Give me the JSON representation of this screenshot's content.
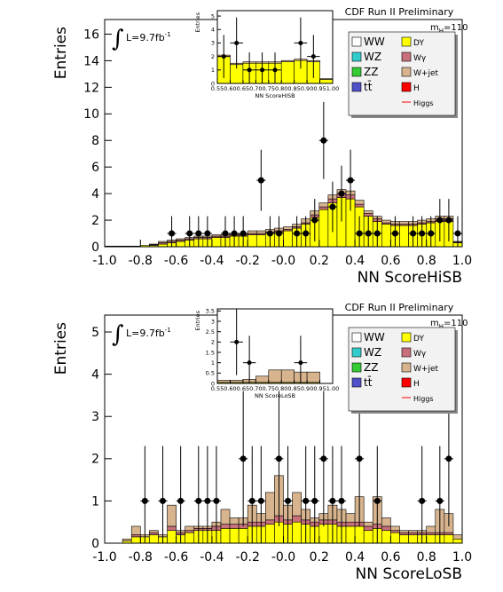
{
  "chart_data": [
    {
      "type": "stacked_histogram",
      "xlabel": "NN ScoreHiSB",
      "ylabel": "Entries",
      "experiment": "CDF Run II Preliminary",
      "lumi": [
        "∫",
        "L=9.7fb",
        "-1"
      ],
      "mass": [
        "m",
        "H",
        "=110"
      ],
      "xlim": [
        -1.0,
        1.0
      ],
      "ylim": [
        0,
        17.1
      ],
      "xticks": [
        {
          "value": -1.0,
          "label": "-1.0"
        },
        {
          "value": -0.8,
          "label": "-0.8"
        },
        {
          "value": -0.6,
          "label": "-0.6"
        },
        {
          "value": -0.4,
          "label": "-0.4"
        },
        {
          "value": -0.2,
          "label": "-0.2"
        },
        {
          "value": 0,
          "label": "-0.0"
        },
        {
          "value": 0.2,
          "label": "0.2"
        },
        {
          "value": 0.4,
          "label": "0.4"
        },
        {
          "value": 0.6,
          "label": "0.6"
        },
        {
          "value": 0.8,
          "label": "0.8"
        },
        {
          "value": 1.0,
          "label": "1.0"
        }
      ],
      "yticks": [
        0,
        2,
        4,
        6,
        8,
        10,
        12,
        14,
        16
      ],
      "bins": [
        -1.0,
        -0.95,
        -0.9,
        -0.85,
        -0.8,
        -0.75,
        -0.7,
        -0.65,
        -0.6,
        -0.55,
        -0.5,
        -0.45,
        -0.4,
        -0.35,
        -0.3,
        -0.25,
        -0.2,
        -0.15,
        -0.1,
        -0.05,
        0,
        0.05,
        0.1,
        0.15,
        0.2,
        0.25,
        0.3,
        0.35,
        0.4,
        0.45,
        0.5,
        0.55,
        0.6,
        0.65,
        0.7,
        0.75,
        0.8,
        0.85,
        0.9,
        0.95,
        1.0
      ],
      "series": [
        {
          "name": "DY",
          "color": "#ffff00",
          "values": [
            0.05,
            0.05,
            0.05,
            0.05,
            0.1,
            0.1,
            0.2,
            0.3,
            0.4,
            0.5,
            0.6,
            0.6,
            0.7,
            0.7,
            0.8,
            0.8,
            0.9,
            0.9,
            1.0,
            1.1,
            1.2,
            1.4,
            1.7,
            2.2,
            2.8,
            3.3,
            3.7,
            3.6,
            3.0,
            2.3,
            1.9,
            1.7,
            1.6,
            1.6,
            1.6,
            1.7,
            1.8,
            1.9,
            1.9,
            0.3
          ]
        },
        {
          "name": "Wγ",
          "color": "#c8707c",
          "values": [
            0,
            0,
            0,
            0,
            0,
            0.05,
            0.1,
            0.1,
            0.1,
            0.1,
            0.1,
            0.1,
            0.1,
            0.1,
            0.1,
            0.1,
            0.1,
            0.1,
            0.1,
            0.1,
            0.1,
            0.1,
            0.1,
            0.2,
            0.2,
            0.3,
            0.3,
            0.3,
            0.2,
            0.2,
            0.2,
            0.1,
            0.1,
            0.1,
            0.1,
            0.1,
            0.1,
            0.2,
            0.2,
            0.05
          ]
        },
        {
          "name": "W+jet",
          "color": "#d7b48e",
          "values": [
            0,
            0,
            0,
            0,
            0,
            0.05,
            0.1,
            0.1,
            0.1,
            0.1,
            0.1,
            0.1,
            0.1,
            0.1,
            0.1,
            0.1,
            0.2,
            0.2,
            0.2,
            0.2,
            0.2,
            0.2,
            0.3,
            0.3,
            0.3,
            0.3,
            0.3,
            0.3,
            0.3,
            0.2,
            0.2,
            0.2,
            0.2,
            0.2,
            0.2,
            0.2,
            0.2,
            0.2,
            0.2,
            0.05
          ]
        }
      ],
      "other_processes": [
        {
          "name": "WW",
          "color": "#ffffff"
        },
        {
          "name": "WZ",
          "color": "#33cccc"
        },
        {
          "name": "ZZ",
          "color": "#33cc33"
        },
        {
          "name": "tt̄",
          "color": "#5050c8"
        },
        {
          "name": "H",
          "color": "#ff0000"
        },
        {
          "name": "Higgs",
          "color": "#ff0000",
          "marker": "line"
        }
      ],
      "points": {
        "values": [
          null,
          null,
          null,
          null,
          null,
          null,
          null,
          1,
          null,
          1,
          1,
          1,
          null,
          1,
          1,
          1,
          null,
          5,
          1,
          1,
          null,
          1,
          1,
          2,
          8,
          3,
          4,
          5,
          1,
          1,
          1,
          null,
          1,
          null,
          1,
          1,
          1,
          2,
          2,
          1
        ],
        "errors": [
          null,
          null,
          null,
          null,
          null,
          null,
          null,
          1.3,
          null,
          1.3,
          1.3,
          1.3,
          null,
          1.3,
          1.3,
          1.3,
          null,
          2.3,
          1.3,
          1.3,
          null,
          1.3,
          1.3,
          1.6,
          2.9,
          1.9,
          2.1,
          2.3,
          1.3,
          1.3,
          1.3,
          null,
          1.3,
          null,
          1.3,
          1.3,
          1.3,
          1.6,
          1.6,
          1.3
        ]
      }
    },
    {
      "type": "stacked_histogram",
      "xlabel": "NN ScoreHiSB",
      "ylabel": "Entries",
      "xlim": [
        0.55,
        1.0
      ],
      "ylim": [
        0,
        5.4
      ],
      "xticks": [
        {
          "value": 0.55,
          "label": "0.55"
        },
        {
          "value": 0.6,
          "label": "0.60"
        },
        {
          "value": 0.65,
          "label": "0.65"
        },
        {
          "value": 0.7,
          "label": "0.70"
        },
        {
          "value": 0.75,
          "label": "0.75"
        },
        {
          "value": 0.8,
          "label": "0.80"
        },
        {
          "value": 0.85,
          "label": "0.85"
        },
        {
          "value": 0.9,
          "label": "0.90"
        },
        {
          "value": 0.95,
          "label": "0.95"
        },
        {
          "value": 1.0,
          "label": "1.00"
        }
      ],
      "yticks": [
        0,
        1,
        2,
        3,
        4,
        5
      ],
      "bins": [
        0.55,
        0.6,
        0.65,
        0.7,
        0.75,
        0.8,
        0.85,
        0.9,
        0.95,
        1.0
      ],
      "series": [
        {
          "name": "DY",
          "color": "#ffff00",
          "values": [
            2.0,
            1.4,
            1.5,
            1.5,
            1.5,
            1.6,
            1.7,
            1.6,
            0.3
          ]
        },
        {
          "name": "W+jet",
          "color": "#d7b48e",
          "values": [
            0.1,
            0.1,
            0.1,
            0.1,
            0.1,
            0.1,
            0.1,
            0.1,
            0.05
          ]
        }
      ],
      "points": {
        "values": [
          2,
          3,
          1,
          1,
          1,
          null,
          3,
          2,
          null
        ],
        "errors": [
          1.6,
          1.9,
          1.3,
          1.3,
          1.3,
          null,
          1.9,
          1.6,
          null
        ]
      }
    },
    {
      "type": "stacked_histogram",
      "xlabel": "NN ScoreLoSB",
      "ylabel": "Entries",
      "experiment": "CDF Run II Preliminary",
      "lumi": [
        "∫",
        "L=9.7fb",
        "-1"
      ],
      "mass": [
        "m",
        "H",
        "=110"
      ],
      "xlim": [
        -1.0,
        1.0
      ],
      "ylim": [
        0,
        5.4
      ],
      "xticks": [
        {
          "value": -1.0,
          "label": "-1.0"
        },
        {
          "value": -0.8,
          "label": "-0.8"
        },
        {
          "value": -0.6,
          "label": "-0.6"
        },
        {
          "value": -0.4,
          "label": "-0.4"
        },
        {
          "value": -0.2,
          "label": "-0.2"
        },
        {
          "value": 0,
          "label": "-0.0"
        },
        {
          "value": 0.2,
          "label": "0.2"
        },
        {
          "value": 0.4,
          "label": "0.4"
        },
        {
          "value": 0.6,
          "label": "0.6"
        },
        {
          "value": 0.8,
          "label": "0.8"
        },
        {
          "value": 1.0,
          "label": "1.0"
        }
      ],
      "yticks": [
        0,
        1,
        2,
        3,
        4,
        5
      ],
      "bins": [
        -1.0,
        -0.95,
        -0.9,
        -0.85,
        -0.8,
        -0.75,
        -0.7,
        -0.65,
        -0.6,
        -0.55,
        -0.5,
        -0.45,
        -0.4,
        -0.35,
        -0.3,
        -0.25,
        -0.2,
        -0.15,
        -0.1,
        -0.05,
        0,
        0.05,
        0.1,
        0.15,
        0.2,
        0.25,
        0.3,
        0.35,
        0.4,
        0.45,
        0.5,
        0.55,
        0.6,
        0.65,
        0.7,
        0.75,
        0.8,
        0.85,
        0.9,
        0.95,
        1.0
      ],
      "series": [
        {
          "name": "DY",
          "color": "#ffff00",
          "values": [
            0,
            0,
            0.05,
            0.15,
            0.15,
            0.2,
            0.15,
            0.3,
            0.2,
            0.25,
            0.3,
            0.3,
            0.3,
            0.35,
            0.35,
            0.35,
            0.4,
            0.4,
            0.45,
            0.5,
            0.45,
            0.5,
            0.45,
            0.4,
            0.45,
            0.45,
            0.4,
            0.4,
            0.4,
            0.3,
            0.35,
            0.3,
            0.25,
            0.2,
            0.2,
            0.2,
            0.2,
            0.2,
            0.2,
            0.1
          ]
        },
        {
          "name": "Wγ",
          "color": "#c8707c",
          "values": [
            0,
            0,
            0,
            0.05,
            0,
            0.05,
            0,
            0.1,
            0.05,
            0.05,
            0.05,
            0.05,
            0.1,
            0.1,
            0.1,
            0.1,
            0.1,
            0.1,
            0.1,
            0.15,
            0.1,
            0.15,
            0.1,
            0.1,
            0.1,
            0.1,
            0.1,
            0.1,
            0.1,
            0.1,
            0.1,
            0.1,
            0.05,
            0.05,
            0.05,
            0.05,
            0.05,
            0.05,
            0.05,
            0
          ]
        },
        {
          "name": "W+jet",
          "color": "#d7b48e",
          "values": [
            0,
            0,
            0.05,
            0.2,
            0.05,
            0.05,
            0.05,
            0.5,
            0.05,
            0.1,
            0.05,
            0.05,
            0.1,
            0.35,
            0.15,
            0.15,
            0.4,
            0.2,
            0.65,
            0.95,
            0.35,
            0.55,
            0.25,
            0.1,
            0.15,
            0.35,
            0.3,
            0.2,
            0.6,
            0.1,
            0.65,
            0.2,
            0.1,
            0.05,
            0.05,
            0.05,
            0.15,
            0.55,
            0.45,
            0.1
          ]
        }
      ],
      "other_processes": [
        {
          "name": "WW",
          "color": "#ffffff"
        },
        {
          "name": "WZ",
          "color": "#33cccc"
        },
        {
          "name": "ZZ",
          "color": "#33cc33"
        },
        {
          "name": "tt̄",
          "color": "#5050c8"
        },
        {
          "name": "H",
          "color": "#ff0000"
        },
        {
          "name": "Higgs",
          "color": "#ff0000",
          "marker": "line"
        }
      ],
      "points": {
        "values": [
          null,
          null,
          null,
          null,
          1,
          null,
          1,
          null,
          1,
          null,
          1,
          1,
          1,
          null,
          null,
          2,
          1,
          1,
          null,
          2,
          1,
          null,
          1,
          1,
          2,
          1,
          1,
          null,
          2,
          null,
          1,
          null,
          null,
          null,
          null,
          1,
          null,
          1,
          2,
          null
        ],
        "errors": [
          null,
          null,
          null,
          null,
          1.3,
          null,
          1.3,
          null,
          1.3,
          null,
          1.3,
          1.3,
          1.3,
          null,
          null,
          1.6,
          1.3,
          1.3,
          null,
          1.6,
          1.3,
          null,
          1.3,
          1.3,
          1.6,
          1.3,
          1.3,
          null,
          1.6,
          null,
          1.3,
          null,
          null,
          null,
          null,
          1.3,
          null,
          1.3,
          1.6,
          null
        ]
      }
    },
    {
      "type": "stacked_histogram",
      "xlabel": "NN ScoreLoSB",
      "ylabel": "Entries",
      "xlim": [
        0.55,
        1.0
      ],
      "ylim": [
        0,
        3.6
      ],
      "xticks": [
        {
          "value": 0.55,
          "label": "0.55"
        },
        {
          "value": 0.6,
          "label": "0.60"
        },
        {
          "value": 0.65,
          "label": "0.65"
        },
        {
          "value": 0.7,
          "label": "0.70"
        },
        {
          "value": 0.75,
          "label": "0.75"
        },
        {
          "value": 0.8,
          "label": "0.80"
        },
        {
          "value": 0.85,
          "label": "0.85"
        },
        {
          "value": 0.9,
          "label": "0.90"
        },
        {
          "value": 0.95,
          "label": "0.95"
        },
        {
          "value": 1.0,
          "label": "1.00"
        }
      ],
      "yticks": [
        0,
        0.5,
        1,
        1.5,
        2,
        2.5,
        3,
        3.5
      ],
      "bins": [
        0.55,
        0.6,
        0.65,
        0.7,
        0.75,
        0.8,
        0.85,
        0.9,
        0.95,
        1.0
      ],
      "series": [
        {
          "name": "DY",
          "color": "#ffff00",
          "values": [
            0.05,
            0.05,
            0.05,
            0.05,
            0.05,
            0.05,
            0.05,
            0.05,
            0
          ]
        },
        {
          "name": "W+jet",
          "color": "#d7b48e",
          "values": [
            0.1,
            0.1,
            0.15,
            0.3,
            0.6,
            0.6,
            0.5,
            0.5,
            0
          ]
        }
      ],
      "points": {
        "values": [
          null,
          2,
          1,
          null,
          null,
          null,
          1,
          null,
          null
        ],
        "errors": [
          null,
          1.6,
          1.3,
          null,
          null,
          null,
          1.3,
          null,
          null
        ]
      }
    }
  ]
}
